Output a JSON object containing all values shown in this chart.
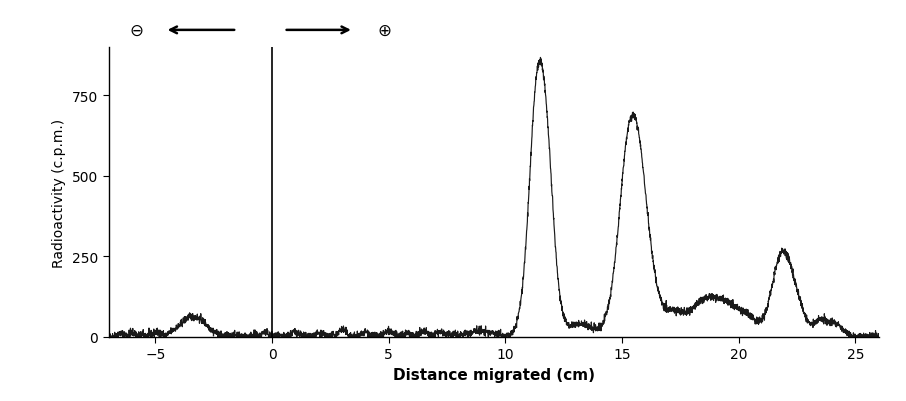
{
  "xlim": [
    -7,
    26
  ],
  "ylim": [
    0,
    900
  ],
  "xlabel": "Distance migrated (cm)",
  "ylabel": "Radioactivity (c.p.m.)",
  "xticks": [
    -5,
    0,
    5,
    10,
    15,
    20,
    25
  ],
  "yticks": [
    0,
    250,
    500,
    750
  ],
  "line_color": "#1a1a1a",
  "bg_color": "#ffffff",
  "vline_x": 0,
  "xlabel_fontsize": 11,
  "ylabel_fontsize": 10,
  "tick_fontsize": 10,
  "figsize": [
    9.06,
    4.02
  ],
  "dpi": 100
}
